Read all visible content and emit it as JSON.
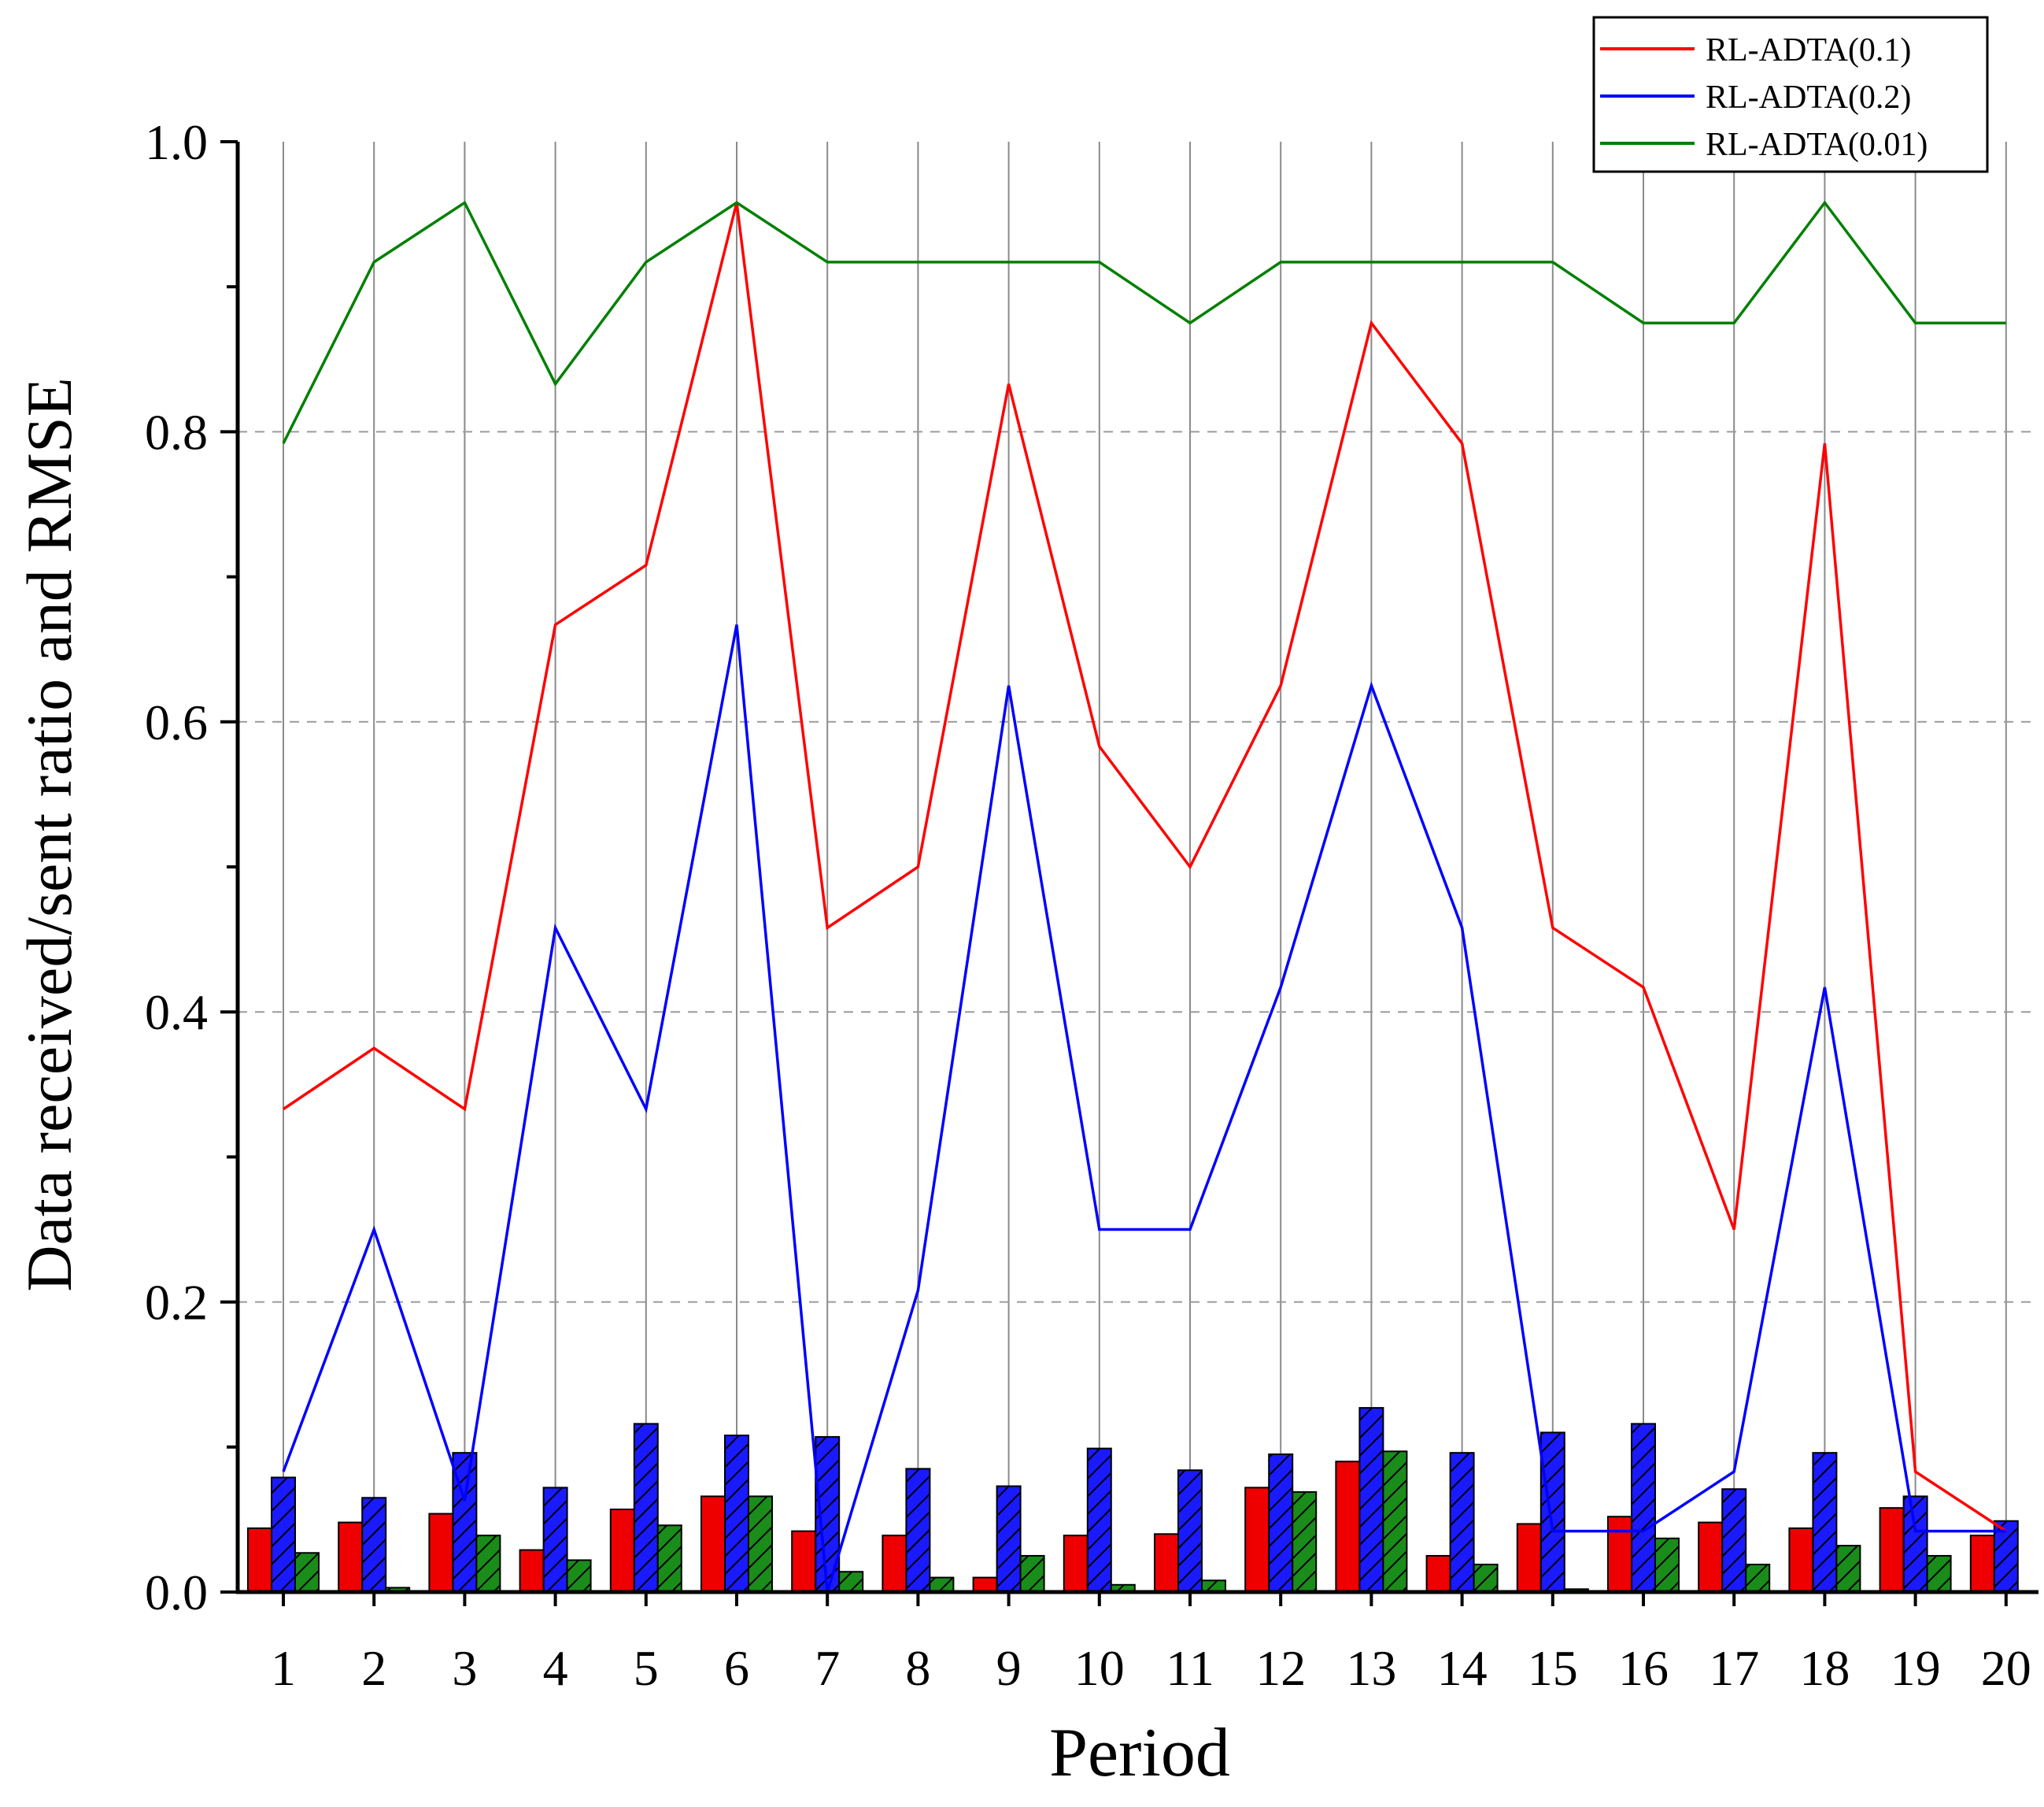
{
  "chart_data": {
    "type": "line+bar",
    "xlabel": "Period",
    "ylabel": "Data received/sent ratio and RMSE",
    "ylim": [
      0,
      1.0
    ],
    "yticks": [
      0.0,
      0.2,
      0.4,
      0.6,
      0.8,
      1.0
    ],
    "ytick_labels": [
      "0.0",
      "0.2",
      "0.4",
      "0.6",
      "0.8",
      "1.0"
    ],
    "categories": [
      "1",
      "2",
      "3",
      "4",
      "5",
      "6",
      "7",
      "8",
      "9",
      "10",
      "11",
      "12",
      "13",
      "14",
      "15",
      "16",
      "17",
      "18",
      "19",
      "20"
    ],
    "legend_position": "top-right",
    "series": [
      {
        "name": "RL-ADTA(0.1)",
        "color": "#ff0000",
        "line_values": [
          0.333,
          0.375,
          0.333,
          0.667,
          0.708,
          0.958,
          0.458,
          0.5,
          0.833,
          0.583,
          0.5,
          0.625,
          0.875,
          0.792,
          0.458,
          0.417,
          0.25,
          0.792,
          0.083,
          0.042
        ],
        "bar_values": [
          0.044,
          0.048,
          0.054,
          0.029,
          0.057,
          0.066,
          0.042,
          0.039,
          0.01,
          0.039,
          0.04,
          0.072,
          0.09,
          0.025,
          0.047,
          0.052,
          0.048,
          0.044,
          0.058,
          0.039
        ],
        "bar_pattern": "solid"
      },
      {
        "name": "RL-ADTA(0.2)",
        "color": "#0000ff",
        "line_values": [
          0.083,
          0.25,
          0.063,
          0.458,
          0.333,
          0.667,
          0.0,
          0.208,
          0.625,
          0.25,
          0.25,
          0.417,
          0.625,
          0.458,
          0.042,
          0.042,
          0.083,
          0.417,
          0.042,
          0.042
        ],
        "bar_values": [
          0.079,
          0.065,
          0.096,
          0.072,
          0.116,
          0.108,
          0.107,
          0.085,
          0.073,
          0.099,
          0.084,
          0.095,
          0.127,
          0.096,
          0.11,
          0.116,
          0.071,
          0.096,
          0.066,
          0.049
        ],
        "bar_pattern": "hatched"
      },
      {
        "name": "RL-ADTA(0.01)",
        "color": "#008000",
        "line_values": [
          0.792,
          0.917,
          0.958,
          0.833,
          0.917,
          0.958,
          0.917,
          0.917,
          0.917,
          0.917,
          0.875,
          0.917,
          0.917,
          0.917,
          0.917,
          0.875,
          0.875,
          0.958,
          0.875,
          0.875
        ],
        "bar_values": [
          0.027,
          0.003,
          0.039,
          0.022,
          0.046,
          0.066,
          0.014,
          0.01,
          0.025,
          0.005,
          0.008,
          0.069,
          0.097,
          0.019,
          0.002,
          0.037,
          0.019,
          0.032,
          0.025,
          0.0
        ],
        "bar_pattern": "hatched"
      }
    ]
  }
}
